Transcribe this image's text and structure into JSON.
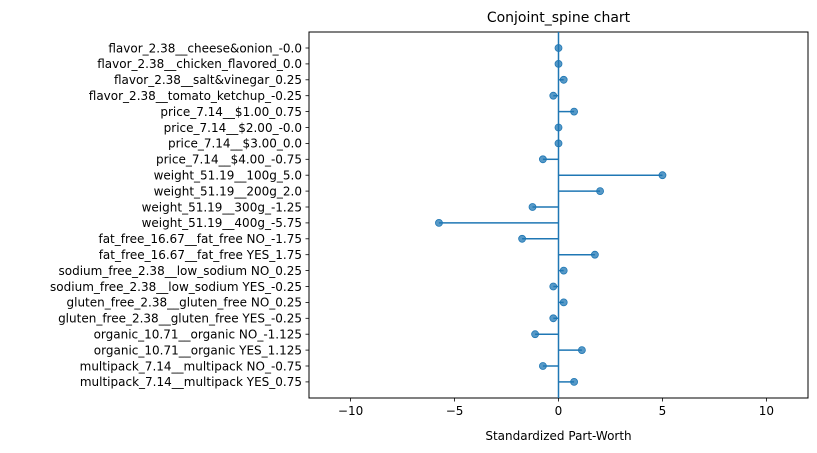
{
  "chart_data": {
    "type": "lollipop",
    "title": "Conjoint_spine chart",
    "xlabel": "Standardized Part-Worth",
    "ylabel": "",
    "xlim": [
      -12,
      12
    ],
    "xticks": [
      -10,
      -5,
      0,
      5,
      10
    ],
    "xtick_labels": [
      "−10",
      "−5",
      "0",
      "5",
      "10"
    ],
    "grid": false,
    "color": "#1f77b4",
    "categories": [
      "flavor_2.38__cheese&onion_-0.0",
      "flavor_2.38__chicken_flavored_0.0",
      "flavor_2.38__salt&vinegar_0.25",
      "flavor_2.38__tomato_ketchup_-0.25",
      "price_7.14__$1.00_0.75",
      "price_7.14__$2.00_-0.0",
      "price_7.14__$3.00_0.0",
      "price_7.14__$4.00_-0.75",
      "weight_51.19__100g_5.0",
      "weight_51.19__200g_2.0",
      "weight_51.19__300g_-1.25",
      "weight_51.19__400g_-5.75",
      "fat_free_16.67__fat_free NO_-1.75",
      "fat_free_16.67__fat_free YES_1.75",
      "sodium_free_2.38__low_sodium NO_0.25",
      "sodium_free_2.38__low_sodium YES_-0.25",
      "gluten_free_2.38__gluten_free NO_0.25",
      "gluten_free_2.38__gluten_free YES_-0.25",
      "organic_10.71__organic NO_-1.125",
      "organic_10.71__organic YES_1.125",
      "multipack_7.14__multipack NO_-0.75",
      "multipack_7.14__multipack YES_0.75"
    ],
    "values": [
      0.0,
      0.0,
      0.25,
      -0.25,
      0.75,
      0.0,
      0.0,
      -0.75,
      5.0,
      2.0,
      -1.25,
      -5.75,
      -1.75,
      1.75,
      0.25,
      -0.25,
      0.25,
      -0.25,
      -1.125,
      1.125,
      -0.75,
      0.75
    ]
  }
}
